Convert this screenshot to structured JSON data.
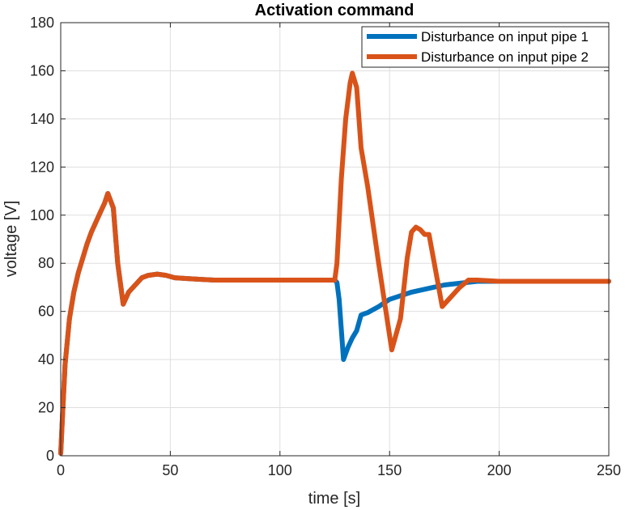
{
  "chart_data": {
    "type": "line",
    "title": "Activation command",
    "xlabel": "time [s]",
    "ylabel": "voltage [V]",
    "xlim": [
      0,
      250
    ],
    "ylim": [
      0,
      180
    ],
    "xticks": [
      0,
      50,
      100,
      150,
      200,
      250
    ],
    "yticks": [
      0,
      20,
      40,
      60,
      80,
      100,
      120,
      140,
      160,
      180
    ],
    "grid": true,
    "legend_position": "top-right",
    "series": [
      {
        "name": "Disturbance on input pipe 1",
        "color": "#0072BD",
        "x": [
          0,
          1,
          2,
          4,
          6,
          8,
          10,
          12,
          14,
          16,
          18,
          20,
          21.5,
          24,
          26,
          28.5,
          31,
          34,
          37,
          40,
          44,
          48,
          52,
          60,
          70,
          80,
          90,
          100,
          110,
          120,
          125,
          126,
          127,
          129,
          131,
          133,
          135,
          137,
          140,
          145,
          150,
          155,
          160,
          165,
          170,
          175,
          180,
          185,
          190,
          200,
          210,
          220,
          230,
          240,
          250
        ],
        "y": [
          1,
          20,
          38,
          57,
          68,
          76,
          82,
          88,
          93,
          97,
          101,
          105,
          109,
          103,
          80,
          63,
          68,
          71,
          74,
          75,
          75.5,
          75,
          74,
          73.5,
          73,
          73,
          73,
          73,
          73,
          73,
          73,
          72,
          65,
          40,
          45,
          49,
          52,
          58.5,
          59.5,
          62,
          65,
          66.5,
          68,
          69,
          70,
          71,
          71.5,
          72,
          72.5,
          72.5,
          72.5,
          72.5,
          72.5,
          72.5,
          72.5
        ]
      },
      {
        "name": "Disturbance on input pipe 2",
        "color": "#D95319",
        "x": [
          0,
          1,
          2,
          4,
          6,
          8,
          10,
          12,
          14,
          16,
          18,
          20,
          21.5,
          24,
          26,
          28.5,
          31,
          34,
          37,
          40,
          44,
          48,
          52,
          60,
          70,
          80,
          90,
          100,
          110,
          120,
          125,
          126,
          128,
          130,
          132,
          133,
          135,
          137,
          140,
          145,
          151,
          155,
          158,
          160,
          162,
          164,
          166,
          168,
          172,
          174,
          178,
          182,
          186,
          190,
          200,
          210,
          220,
          230,
          240,
          250
        ],
        "y": [
          1,
          20,
          38,
          57,
          68,
          76,
          82,
          88,
          93,
          97,
          101,
          105,
          109,
          103,
          80,
          63,
          68,
          71,
          74,
          75,
          75.5,
          75,
          74,
          73.5,
          73,
          73,
          73,
          73,
          73,
          73,
          73,
          80,
          115,
          140,
          155,
          159,
          153,
          128,
          112,
          80,
          44,
          57,
          82,
          93,
          95,
          94,
          92,
          92,
          72,
          62,
          66,
          70,
          73,
          73,
          72.5,
          72.5,
          72.5,
          72.5,
          72.5,
          72.5
        ]
      }
    ]
  }
}
